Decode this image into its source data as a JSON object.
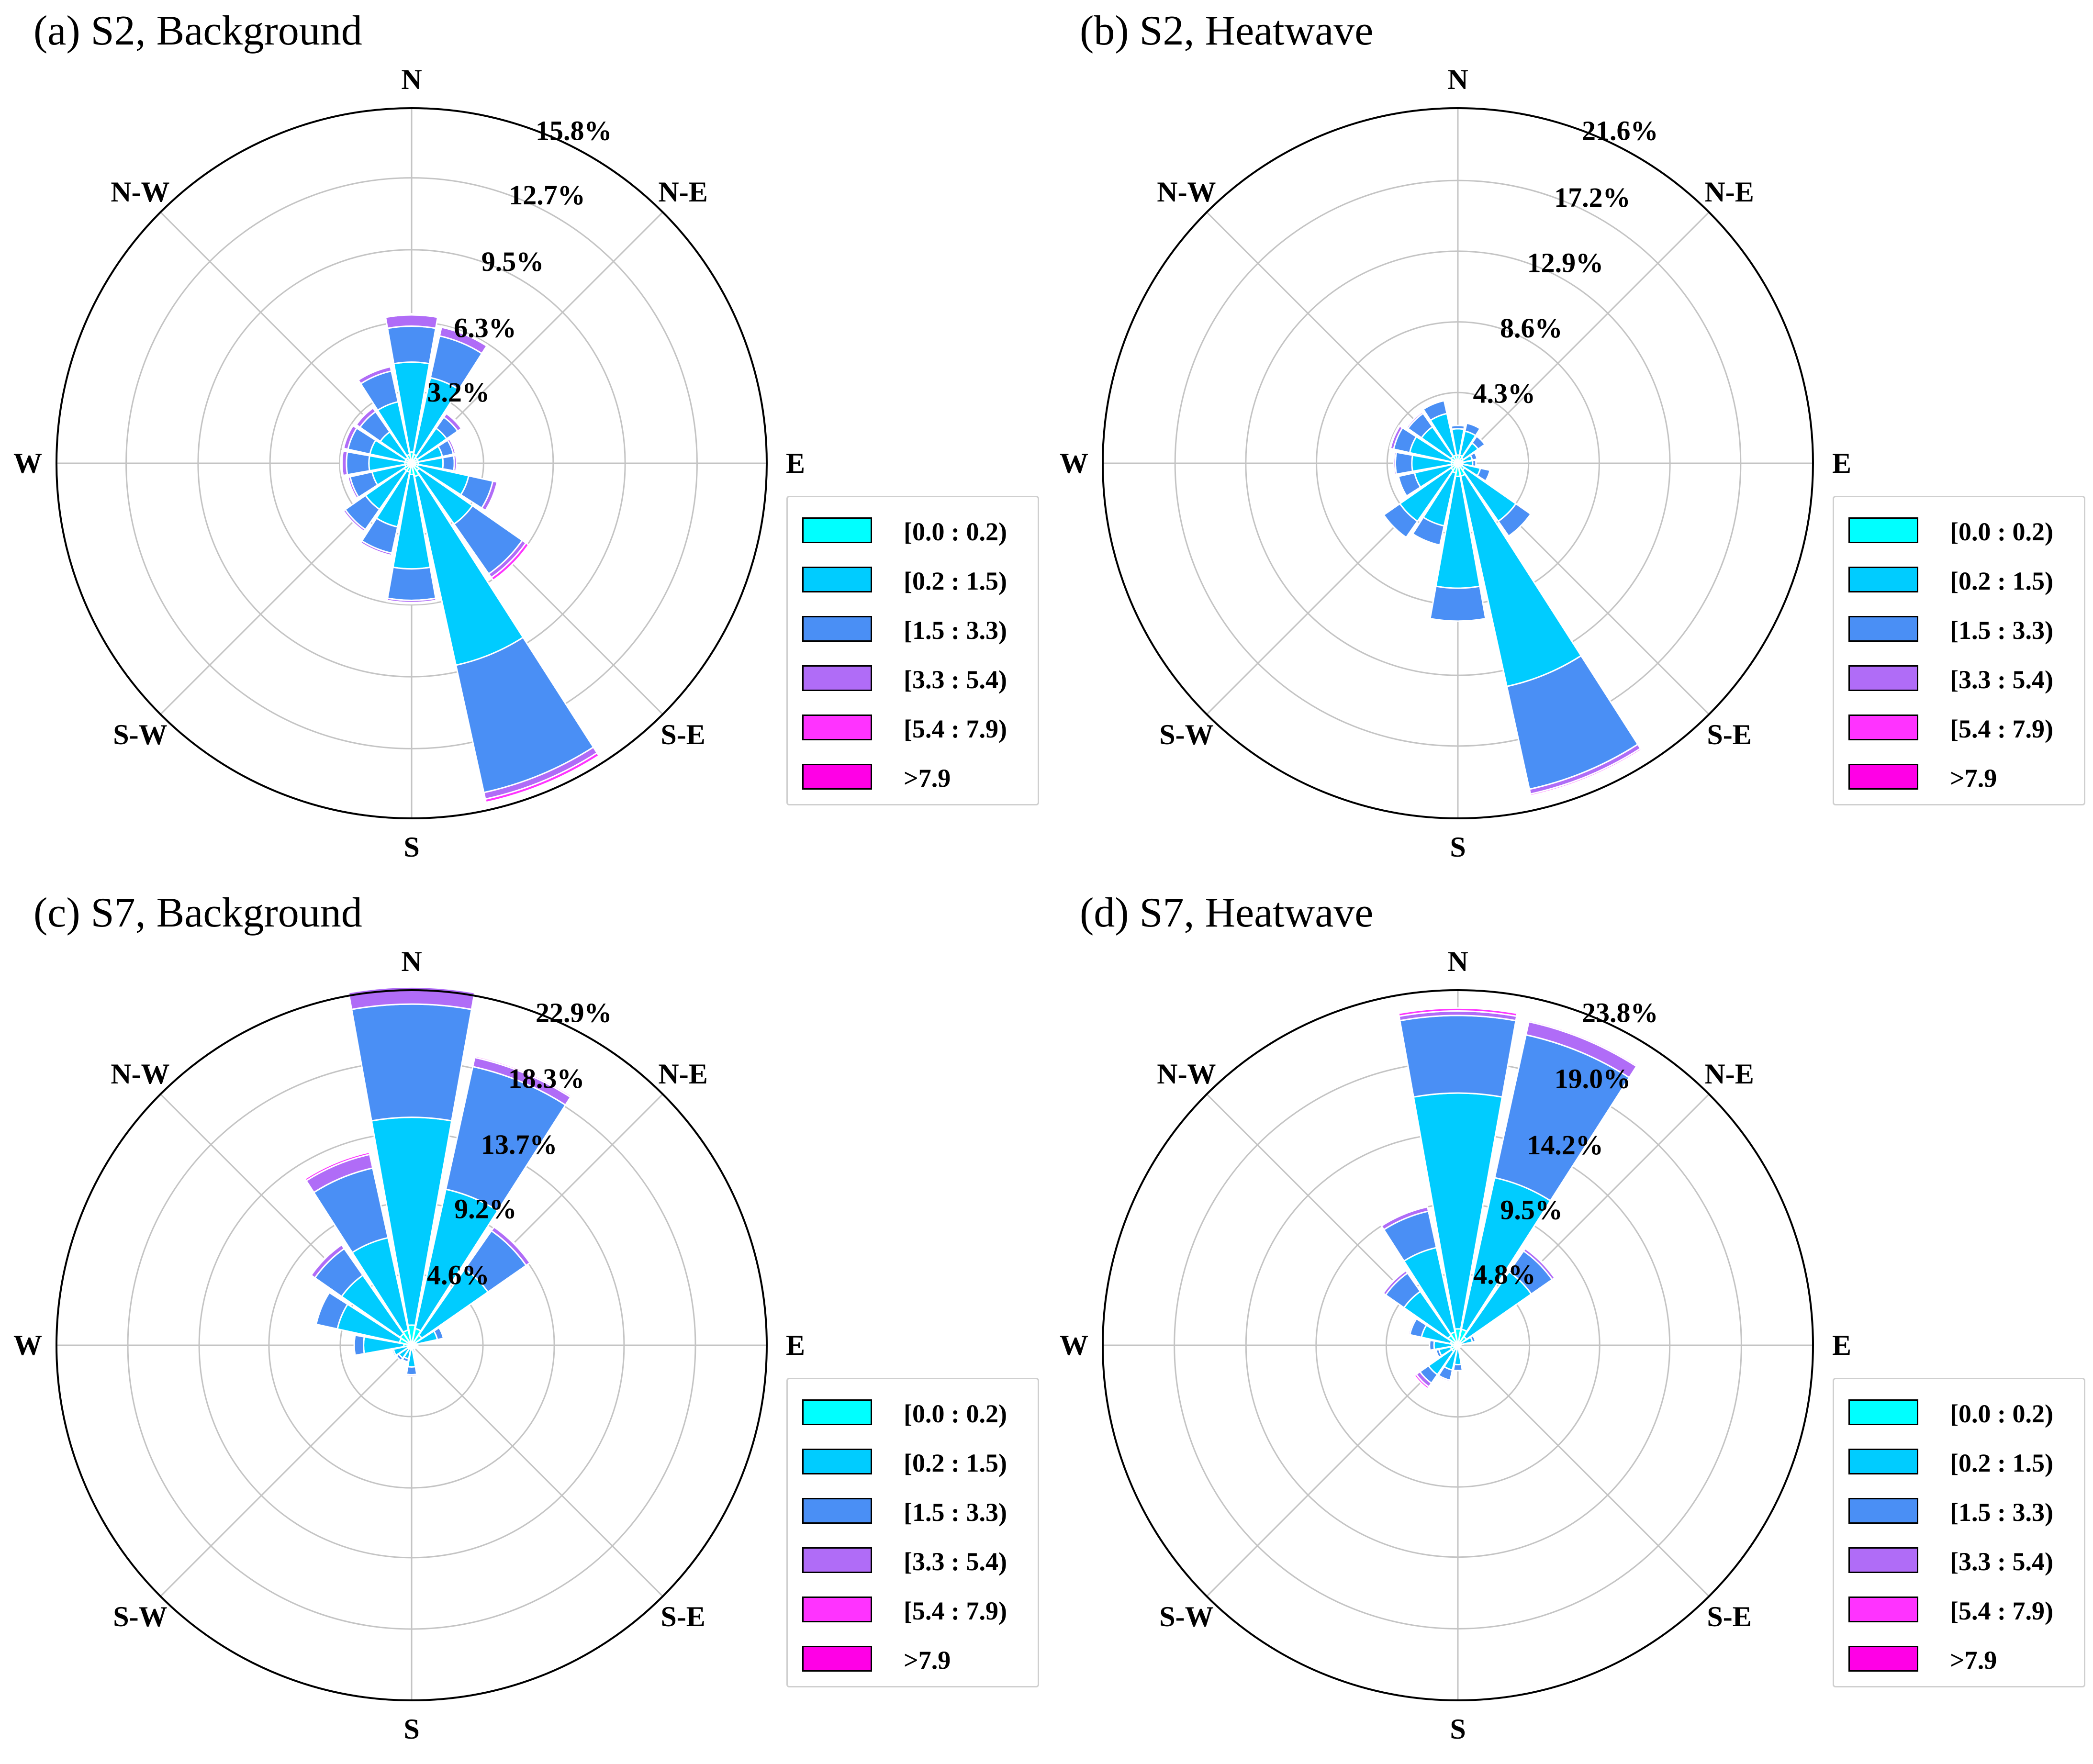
{
  "figure": {
    "background": "#ffffff"
  },
  "legend": {
    "bins": [
      "[0.0 : 0.2)",
      "[0.2 : 1.5)",
      "[1.5 : 3.3)",
      "[3.3 : 5.4)",
      "[5.4 : 7.9)",
      ">7.9"
    ],
    "colors": [
      "#00ffff",
      "#00ccff",
      "#4a8ff5",
      "#b06cf7",
      "#ff33ff",
      "#ff00e6"
    ]
  },
  "chart_data": [
    {
      "type": "windrose",
      "title": "(a) S2, Background",
      "direction_labels": [
        "N",
        "N-E",
        "E",
        "S-E",
        "S",
        "S-W",
        "W",
        "N-W"
      ],
      "sector_directions_deg": [
        0,
        22.5,
        45,
        67.5,
        90,
        112.5,
        135,
        157.5,
        180,
        202.5,
        225,
        247.5,
        270,
        292.5,
        315,
        337.5
      ],
      "radial_ticks": [
        3.2,
        6.3,
        9.5,
        12.7,
        15.8
      ],
      "radial_tick_labels": [
        "3.2%",
        "6.3%",
        "9.5%",
        "12.7%",
        "15.8%"
      ],
      "rmax": 15.8,
      "series": [
        {
          "name": "[0.0 : 0.2)",
          "values": [
            0.5,
            0.4,
            0.3,
            0.3,
            0.3,
            0.3,
            0.4,
            0.6,
            0.5,
            0.4,
            0.4,
            0.3,
            0.3,
            0.3,
            0.3,
            0.4
          ]
        },
        {
          "name": "[0.2 : 1.5)",
          "values": [
            4.0,
            3.5,
            1.6,
            1.1,
            1.1,
            2.3,
            2.9,
            8.6,
            4.2,
            2.5,
            2.1,
            1.5,
            1.6,
            1.6,
            1.4,
            2.4
          ]
        },
        {
          "name": "[1.5 : 3.3)",
          "values": [
            1.6,
            1.9,
            0.6,
            0.5,
            0.5,
            1.1,
            2.7,
            5.8,
            1.4,
            1.2,
            1.1,
            1.0,
            1.0,
            1.0,
            1.1,
            1.4
          ]
        },
        {
          "name": "[3.3 : 5.4)",
          "values": [
            0.5,
            0.4,
            0.2,
            0.1,
            0.1,
            0.2,
            0.2,
            0.3,
            0.1,
            0.1,
            0.1,
            0.1,
            0.2,
            0.2,
            0.2,
            0.2
          ]
        },
        {
          "name": "[5.4 : 7.9)",
          "values": [
            0.05,
            0.05,
            0.05,
            0.0,
            0.0,
            0.05,
            0.15,
            0.15,
            0.05,
            0,
            0,
            0,
            0.05,
            0.05,
            0.05,
            0.05
          ]
        },
        {
          "name": ">7.9",
          "values": [
            0,
            0,
            0,
            0,
            0,
            0,
            0,
            0,
            0,
            0,
            0,
            0,
            0,
            0,
            0,
            0
          ]
        }
      ]
    },
    {
      "type": "windrose",
      "title": "(b) S2, Heatwave",
      "direction_labels": [
        "N",
        "N-E",
        "E",
        "S-E",
        "S",
        "S-W",
        "W",
        "N-W"
      ],
      "sector_directions_deg": [
        0,
        22.5,
        45,
        67.5,
        90,
        112.5,
        135,
        157.5,
        180,
        202.5,
        225,
        247.5,
        270,
        292.5,
        315,
        337.5
      ],
      "radial_ticks": [
        4.3,
        8.6,
        12.9,
        17.2,
        21.6
      ],
      "radial_tick_labels": [
        "4.3%",
        "8.6%",
        "12.9%",
        "17.2%",
        "21.6%"
      ],
      "rmax": 21.6,
      "series": [
        {
          "name": "[0.0 : 0.2)",
          "values": [
            0.5,
            0.5,
            0.4,
            0.3,
            0.3,
            0.3,
            0.5,
            0.8,
            0.8,
            0.6,
            0.5,
            0.4,
            0.4,
            0.4,
            0.5,
            0.5
          ]
        },
        {
          "name": "[0.2 : 1.5)",
          "values": [
            1.6,
            1.5,
            1.1,
            0.6,
            0.6,
            1.1,
            3.8,
            13.1,
            6.8,
            3.3,
            3.8,
            2.3,
            2.4,
            2.6,
            2.2,
            2.6
          ]
        },
        {
          "name": "[1.5 : 3.3)",
          "values": [
            0.2,
            0.5,
            0.5,
            0.3,
            0.2,
            0.6,
            1.1,
            6.4,
            2.0,
            1.2,
            1.2,
            1.0,
            1.0,
            1.0,
            1.0,
            0.8
          ]
        },
        {
          "name": "[3.3 : 5.4)",
          "values": [
            0,
            0,
            0,
            0,
            0,
            0,
            0,
            0.3,
            0,
            0,
            0,
            0,
            0.1,
            0.2,
            0.1,
            0
          ]
        },
        {
          "name": "[5.4 : 7.9)",
          "values": [
            0,
            0,
            0,
            0,
            0,
            0,
            0,
            0.1,
            0,
            0,
            0,
            0,
            0,
            0.05,
            0,
            0
          ]
        },
        {
          "name": ">7.9",
          "values": [
            0,
            0,
            0,
            0,
            0,
            0,
            0,
            0,
            0,
            0,
            0,
            0,
            0,
            0,
            0,
            0
          ]
        }
      ]
    },
    {
      "type": "windrose",
      "title": "(c) S7, Background",
      "direction_labels": [
        "N",
        "N-E",
        "E",
        "S-E",
        "S",
        "S-W",
        "W",
        "N-W"
      ],
      "sector_directions_deg": [
        0,
        22.5,
        45,
        67.5,
        90,
        112.5,
        135,
        157.5,
        180,
        202.5,
        225,
        247.5,
        270,
        292.5,
        315,
        337.5
      ],
      "radial_ticks": [
        4.6,
        9.2,
        13.7,
        18.3,
        22.9
      ],
      "radial_tick_labels": [
        "4.6%",
        "9.2%",
        "13.7%",
        "18.3%",
        "22.9%"
      ],
      "rmax": 22.9,
      "series": [
        {
          "name": "[0.0 : 0.2)",
          "values": [
            1.3,
            1.1,
            0.8,
            0.3,
            0.1,
            0.1,
            0.1,
            0.1,
            0.3,
            0.2,
            0.3,
            0.3,
            0.5,
            0.8,
            0.9,
            1.0
          ]
        },
        {
          "name": "[0.2 : 1.5)",
          "values": [
            13.4,
            9.2,
            5.2,
            1.4,
            0.2,
            0.1,
            0.2,
            0.3,
            1.1,
            0.7,
            0.7,
            0.9,
            2.6,
            4.1,
            4.6,
            6.1
          ]
        },
        {
          "name": "[1.5 : 3.3)",
          "values": [
            7.3,
            8.1,
            3.0,
            0.4,
            0.1,
            0.0,
            0.0,
            0.1,
            0.5,
            0.2,
            0.2,
            0.1,
            0.6,
            1.4,
            2.1,
            4.6
          ]
        },
        {
          "name": "[3.3 : 5.4)",
          "values": [
            1.1,
            0.6,
            0.3,
            0.0,
            0,
            0,
            0,
            0,
            0.1,
            0.0,
            0,
            0,
            0,
            0.0,
            0.3,
            0.9
          ]
        },
        {
          "name": "[5.4 : 7.9)",
          "values": [
            0.0,
            0.1,
            0.05,
            0,
            0,
            0,
            0,
            0,
            0,
            0,
            0,
            0,
            0,
            0.0,
            0.05,
            0.15
          ]
        },
        {
          "name": ">7.9",
          "values": [
            0,
            0,
            0,
            0,
            0,
            0,
            0,
            0,
            0,
            0,
            0,
            0,
            0,
            0,
            0,
            0
          ]
        }
      ]
    },
    {
      "type": "windrose",
      "title": "(d) S7, Heatwave",
      "direction_labels": [
        "N",
        "N-E",
        "E",
        "S-E",
        "S",
        "S-W",
        "W",
        "N-W"
      ],
      "sector_directions_deg": [
        0,
        22.5,
        45,
        67.5,
        90,
        112.5,
        135,
        157.5,
        180,
        202.5,
        225,
        247.5,
        270,
        292.5,
        315,
        337.5
      ],
      "radial_ticks": [
        4.8,
        9.5,
        14.2,
        19.0,
        23.8
      ],
      "radial_tick_labels": [
        "4.8%",
        "9.5%",
        "14.2%",
        "19.0%",
        "23.8%"
      ],
      "rmax": 23.8,
      "series": [
        {
          "name": "[0.0 : 0.2)",
          "values": [
            1.1,
            1.1,
            0.7,
            0.2,
            0.1,
            0.1,
            0.1,
            0.1,
            0.2,
            0.3,
            0.5,
            0.5,
            0.4,
            0.5,
            0.8,
            0.9
          ]
        },
        {
          "name": "[0.2 : 1.5)",
          "values": [
            15.8,
            10.4,
            5.3,
            0.8,
            0.1,
            0.0,
            0.1,
            0.1,
            1.1,
            1.4,
            1.9,
            0.8,
            1.2,
            2.0,
            3.6,
            5.8
          ]
        },
        {
          "name": "[1.5 : 3.3)",
          "values": [
            5.2,
            9.8,
            1.7,
            0.2,
            0.0,
            0,
            0,
            0,
            0.4,
            0.7,
            0.7,
            0.2,
            0.3,
            0.8,
            1.5,
            2.5
          ]
        },
        {
          "name": "[3.3 : 5.4)",
          "values": [
            0.3,
            0.9,
            0.2,
            0.0,
            0,
            0,
            0,
            0,
            0.0,
            0.1,
            0.3,
            0.0,
            0.0,
            0.1,
            0.2,
            0.3
          ]
        },
        {
          "name": "[5.4 : 7.9)",
          "values": [
            0.2,
            0.1,
            0.05,
            0,
            0,
            0,
            0,
            0,
            0,
            0,
            0.15,
            0,
            0,
            0,
            0.05,
            0.05
          ]
        },
        {
          "name": ">7.9",
          "values": [
            0,
            0,
            0,
            0,
            0,
            0,
            0,
            0,
            0,
            0,
            0,
            0,
            0,
            0,
            0,
            0
          ]
        }
      ]
    }
  ]
}
